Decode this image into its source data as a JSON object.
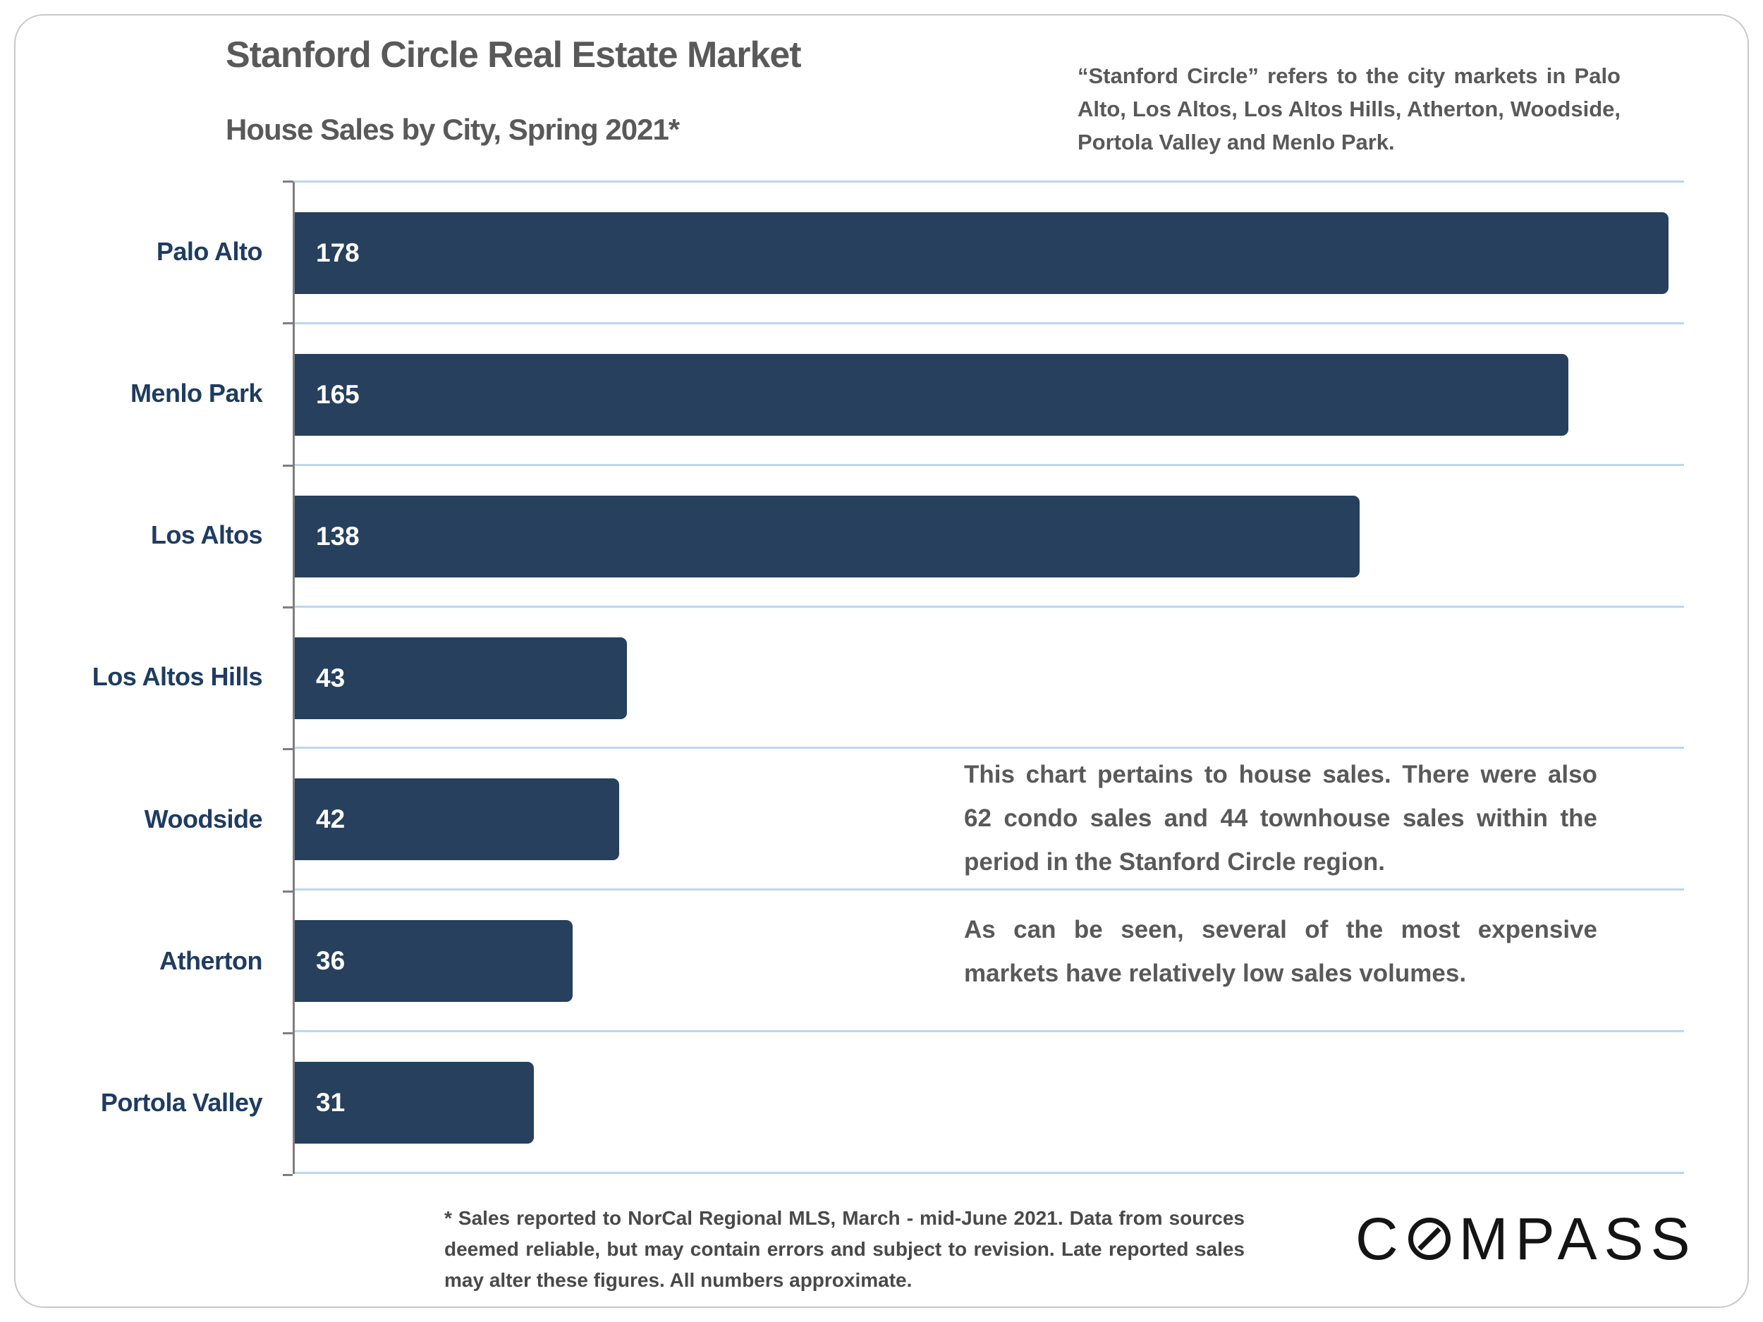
{
  "header": {
    "title": "Stanford Circle Real Estate Market",
    "subtitle": "House Sales by City, Spring 2021*",
    "intro": "“Stanford Circle” refers to the city markets in Palo Alto, Los Altos, Los Altos Hills, Atherton, Woodside, Portola Valley and Menlo Park."
  },
  "chart_data": {
    "type": "bar",
    "orientation": "horizontal",
    "title": "Stanford Circle Real Estate Market",
    "subtitle": "House Sales by City, Spring 2021*",
    "categories": [
      "Palo Alto",
      "Menlo Park",
      "Los Altos",
      "Los Altos Hills",
      "Woodside",
      "Atherton",
      "Portola Valley"
    ],
    "values": [
      178,
      165,
      138,
      43,
      42,
      36,
      31
    ],
    "xlabel": "",
    "ylabel": "",
    "xlim": [
      0,
      180
    ],
    "value_labels_position": "inside bar, left, white",
    "gridlines": "horizontal separators between categories, light blue",
    "legend": "none"
  },
  "annotations": {
    "para1": "This chart pertains to house sales. There were also 62 condo sales and 44 townhouse sales within the period in the Stanford Circle region.",
    "para2": "As can be seen, several of the most expensive markets have relatively low sales volumes."
  },
  "footnote": "* Sales reported to NorCal Regional MLS, March - mid-June 2021. Data from sources deemed reliable, but may contain errors and subject to revision. Late reported sales may alter these figures. All numbers approximate.",
  "logo": {
    "text": "COMPASS",
    "prefix": "C",
    "suffix": "MPASS"
  },
  "colors": {
    "bar": "#26405d",
    "category_label": "#1f3c61",
    "heading_text": "#595959",
    "gridline": "#bdd7ee",
    "axis": "#7f7f7f",
    "footnote_text": "#494949",
    "logo": "#141414",
    "card_border": "#c9c9c9"
  }
}
